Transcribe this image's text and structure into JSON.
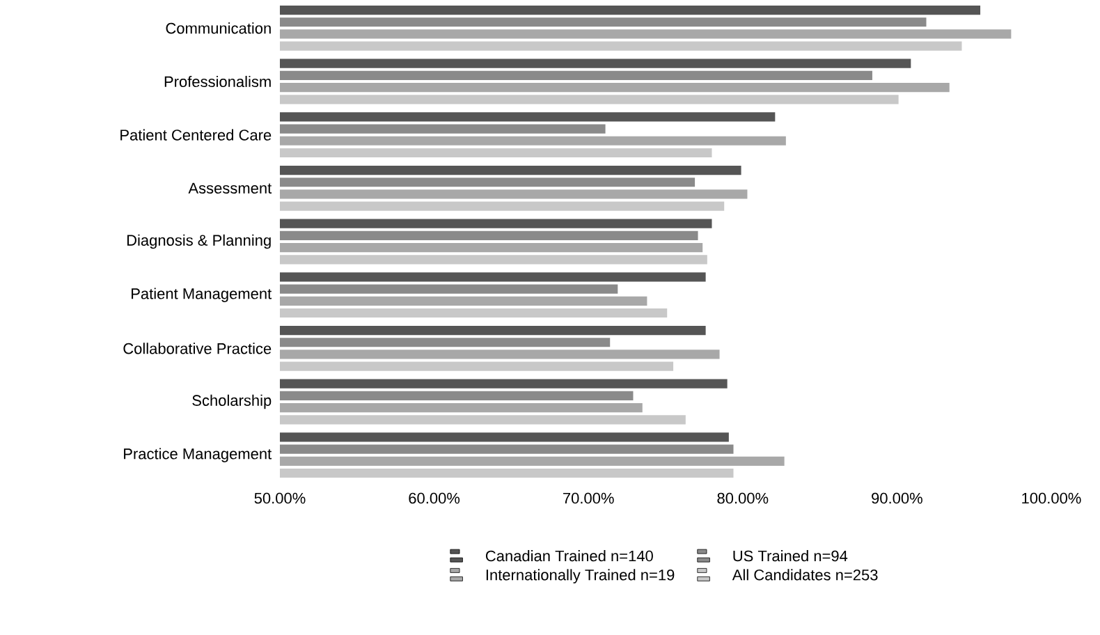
{
  "chart_data": {
    "type": "bar",
    "orientation": "horizontal",
    "categories": [
      "Communication",
      "Professionalism",
      "Patient Centered Care",
      "Assessment",
      "Diagnosis & Planning",
      "Patient Management",
      "Collaborative Practice",
      "Scholarship",
      "Practice Management"
    ],
    "series": [
      {
        "name": "Canadian Trained n=140",
        "color": "#555555",
        "values": [
          95.4,
          90.9,
          82.1,
          79.9,
          78.0,
          77.6,
          77.6,
          79.0,
          79.1
        ]
      },
      {
        "name": "US Trained n=94",
        "color": "#8a8a8a",
        "values": [
          91.9,
          88.4,
          71.1,
          76.9,
          77.1,
          71.9,
          71.4,
          72.9,
          79.4
        ]
      },
      {
        "name": "Internationally Trained n=19",
        "color": "#a8a8a8",
        "values": [
          97.4,
          93.4,
          82.8,
          80.3,
          77.4,
          73.8,
          78.5,
          73.5,
          82.7
        ]
      },
      {
        "name": "All Candidates n=253",
        "color": "#c8c8c8",
        "values": [
          94.2,
          90.1,
          78.0,
          78.8,
          77.7,
          75.1,
          75.5,
          76.3,
          79.4
        ]
      }
    ],
    "xlim": [
      50,
      100
    ],
    "xticks": [
      {
        "value": 50,
        "label": "50.00%"
      },
      {
        "value": 60,
        "label": "60.00%"
      },
      {
        "value": 70,
        "label": "70.00%"
      },
      {
        "value": 80,
        "label": "80.00%"
      },
      {
        "value": 90,
        "label": "90.00%"
      },
      {
        "value": 100,
        "label": "100.00%"
      }
    ],
    "legend": "bottom"
  }
}
